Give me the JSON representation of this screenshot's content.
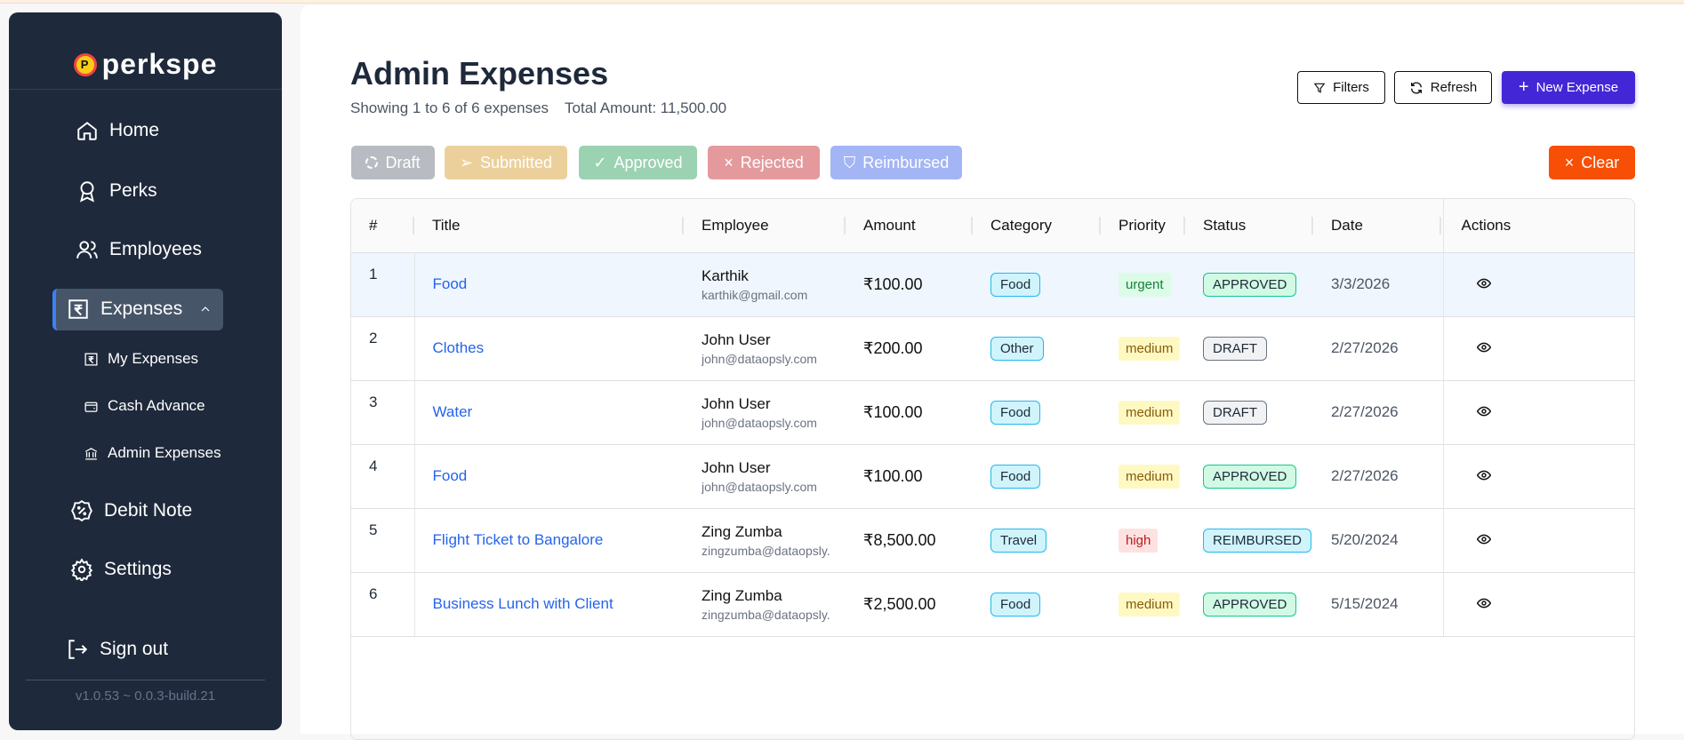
{
  "brand": {
    "logo_text": "perkspe",
    "version": "v1.0.53 ~ 0.0.3-build.21"
  },
  "sidebar": {
    "items": [
      {
        "label": "Home",
        "icon": "home-icon"
      },
      {
        "label": "Perks",
        "icon": "award-icon"
      },
      {
        "label": "Employees",
        "icon": "users-icon"
      },
      {
        "label": "Expenses",
        "icon": "receipt-rupee-icon",
        "active": true,
        "expanded": true
      },
      {
        "label": "Debit Note",
        "icon": "badge-percent-icon"
      },
      {
        "label": "Settings",
        "icon": "gear-icon"
      }
    ],
    "subitems": [
      {
        "label": "My Expenses",
        "icon": "receipt-rupee-icon"
      },
      {
        "label": "Cash Advance",
        "icon": "wallet-icon"
      },
      {
        "label": "Admin Expenses",
        "icon": "bank-icon"
      }
    ],
    "signout": "Sign out"
  },
  "header": {
    "title": "Admin Expenses",
    "showing": "Showing 1 to 6 of 6 expenses",
    "total": "Total Amount: 11,500.00",
    "filters_label": "Filters",
    "refresh_label": "Refresh",
    "new_label": "New Expense"
  },
  "status_filters": [
    {
      "label": "Draft",
      "color": "#b8bbc2"
    },
    {
      "label": "Submitted",
      "color": "#ecd09c"
    },
    {
      "label": "Approved",
      "color": "#9bd2b2"
    },
    {
      "label": "Rejected",
      "color": "#e49a9c"
    },
    {
      "label": "Reimbursed",
      "color": "#a3b5f5"
    }
  ],
  "clear_label": "Clear",
  "clear_color": "#f74f05",
  "table": {
    "columns": [
      "#",
      "Title",
      "Employee",
      "Amount",
      "Category",
      "Priority",
      "Status",
      "Date",
      "Actions"
    ],
    "rows": [
      {
        "n": "1",
        "title": "Food",
        "name": "Karthik",
        "email": "karthik@gmail.com",
        "amount": "₹100.00",
        "category": "Food",
        "priority": "urgent",
        "status": "APPROVED",
        "date": "3/3/2026"
      },
      {
        "n": "2",
        "title": "Clothes",
        "name": "John User",
        "email": "john@dataopsly.com",
        "amount": "₹200.00",
        "category": "Other",
        "priority": "medium",
        "status": "DRAFT",
        "date": "2/27/2026"
      },
      {
        "n": "3",
        "title": "Water",
        "name": "John User",
        "email": "john@dataopsly.com",
        "amount": "₹100.00",
        "category": "Food",
        "priority": "medium",
        "status": "DRAFT",
        "date": "2/27/2026"
      },
      {
        "n": "4",
        "title": "Food",
        "name": "John User",
        "email": "john@dataopsly.com",
        "amount": "₹100.00",
        "category": "Food",
        "priority": "medium",
        "status": "APPROVED",
        "date": "2/27/2026"
      },
      {
        "n": "5",
        "title": "Flight Ticket to Bangalore",
        "name": "Zing Zumba",
        "email": "zingzumba@dataopsly.",
        "amount": "₹8,500.00",
        "category": "Travel",
        "priority": "high",
        "status": "REIMBURSED",
        "date": "5/20/2024"
      },
      {
        "n": "6",
        "title": "Business Lunch with Client",
        "name": "Zing Zumba",
        "email": "zingzumba@dataopsly.",
        "amount": "₹2,500.00",
        "category": "Food",
        "priority": "medium",
        "status": "APPROVED",
        "date": "5/15/2024"
      }
    ]
  }
}
